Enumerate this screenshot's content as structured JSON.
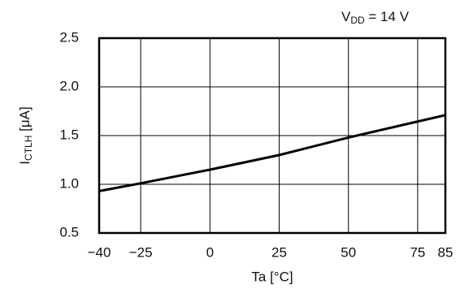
{
  "chart_data": {
    "type": "line",
    "annotation": {
      "symbol": "V",
      "subscript": "DD",
      "rest": " = 14 V"
    },
    "y_label": {
      "symbol": "I",
      "subscript": "CTLH",
      "rest": " [μA]"
    },
    "x_label": "Ta [°C]",
    "x": [
      -40,
      -25,
      0,
      25,
      50,
      85
    ],
    "series": [
      {
        "color": "#000000",
        "values": [
          0.93,
          1.01,
          1.15,
          1.3,
          1.48,
          1.71
        ]
      }
    ],
    "xlim": [
      -40,
      85
    ],
    "xticks": [
      {
        "value": -40,
        "label": "−40"
      },
      {
        "value": -25,
        "label": "−25"
      },
      0,
      25,
      50,
      75,
      85
    ],
    "ylim": [
      0.5,
      2.5
    ],
    "yticks": [
      0.5,
      {
        "value": 1,
        "label": "1.0"
      },
      1.5,
      {
        "value": 2,
        "label": "2.0"
      },
      2.5
    ],
    "grid": true
  }
}
